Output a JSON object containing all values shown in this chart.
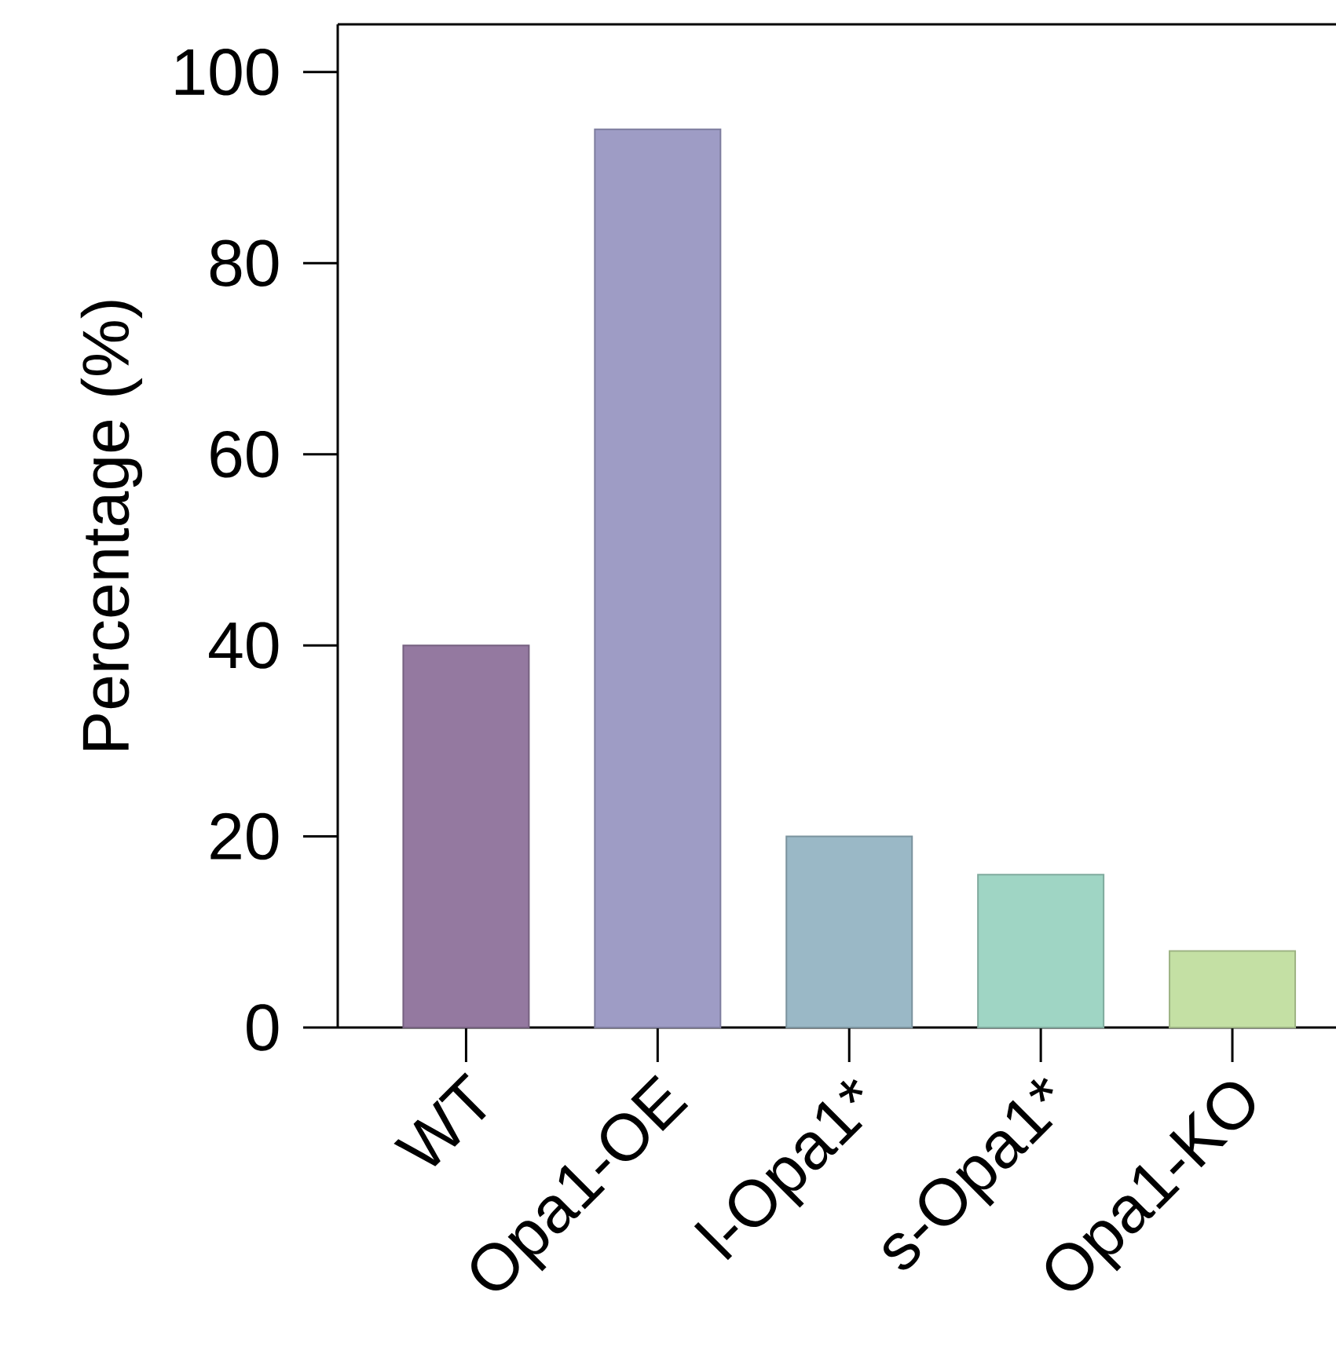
{
  "chart_data": {
    "type": "bar",
    "ylabel": "Percentage (%)",
    "categories": [
      "WT",
      "Opa1-OE",
      "l-Opa1*",
      "s-Opa1*",
      "Opa1-KO"
    ],
    "values": [
      40,
      94,
      20,
      16,
      8
    ],
    "colors": [
      "#9479a0",
      "#9e9cc5",
      "#9ab8c6",
      "#9fd5c4",
      "#c4e0a4"
    ],
    "ylim": [
      0,
      105
    ],
    "yticks": [
      0,
      20,
      40,
      60,
      80,
      100
    ]
  }
}
